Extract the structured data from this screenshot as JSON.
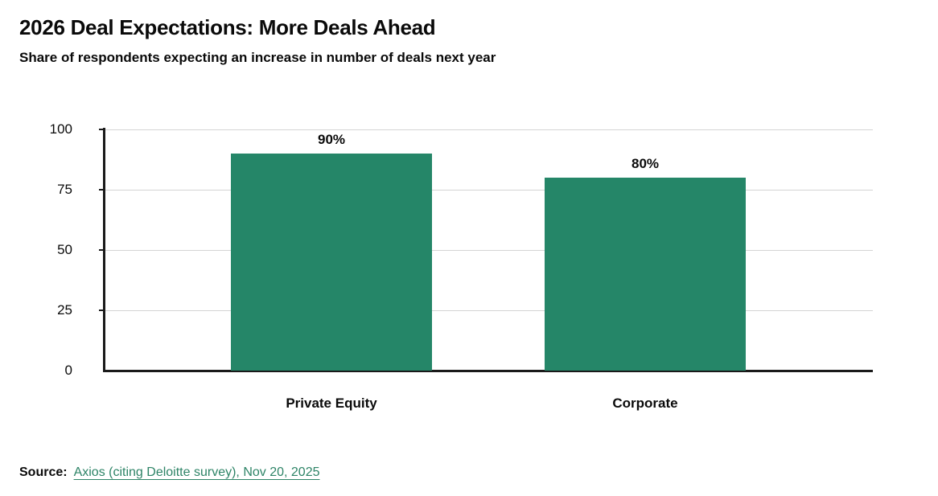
{
  "header": {
    "title": "2026 Deal Expectations: More Deals Ahead",
    "subtitle": "Share of respondents expecting an increase in number of deals next year"
  },
  "chart_data": {
    "type": "bar",
    "categories": [
      "Private Equity",
      "Corporate"
    ],
    "values": [
      90,
      80
    ],
    "data_labels": [
      "90%",
      "80%"
    ],
    "title": "2026 Deal Expectations: More Deals Ahead",
    "xlabel": "",
    "ylabel": "",
    "ylim": [
      0,
      100
    ],
    "yticks": [
      0,
      25,
      50,
      75,
      100
    ],
    "grid": "horizontal",
    "legend": "none",
    "bar_color": "#258668",
    "gridline_color": "#d4d4d4",
    "axis_color": "#1a1a1a"
  },
  "footer": {
    "source_label": "Source:",
    "source_link": "Axios (citing Deloitte survey), Nov 20, 2025",
    "link_color": "#2e8467"
  }
}
